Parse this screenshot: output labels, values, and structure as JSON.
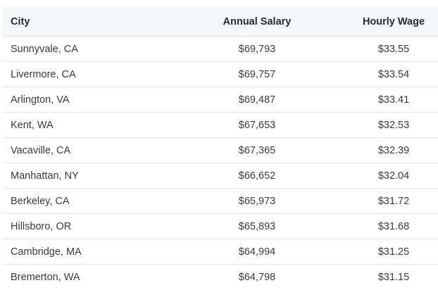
{
  "table": {
    "headers": {
      "city": "City",
      "annual_salary": "Annual Salary",
      "hourly_wage": "Hourly Wage"
    },
    "rows": [
      {
        "city": "Sunnyvale, CA",
        "annual_salary": "$69,793",
        "hourly_wage": "$33.55"
      },
      {
        "city": "Livermore, CA",
        "annual_salary": "$69,757",
        "hourly_wage": "$33.54"
      },
      {
        "city": "Arlington, VA",
        "annual_salary": "$69,487",
        "hourly_wage": "$33.41"
      },
      {
        "city": "Kent, WA",
        "annual_salary": "$67,653",
        "hourly_wage": "$32.53"
      },
      {
        "city": "Vacaville, CA",
        "annual_salary": "$67,365",
        "hourly_wage": "$32.39"
      },
      {
        "city": "Manhattan, NY",
        "annual_salary": "$66,652",
        "hourly_wage": "$32.04"
      },
      {
        "city": "Berkeley, CA",
        "annual_salary": "$65,973",
        "hourly_wage": "$31.72"
      },
      {
        "city": "Hillsboro, OR",
        "annual_salary": "$65,893",
        "hourly_wage": "$31.68"
      },
      {
        "city": "Cambridge, MA",
        "annual_salary": "$64,994",
        "hourly_wage": "$31.25"
      },
      {
        "city": "Bremerton, WA",
        "annual_salary": "$64,798",
        "hourly_wage": "$31.15"
      }
    ]
  },
  "colors": {
    "header_bg": "#f5f6f7",
    "border": "#e6e6e6",
    "text": "#333333"
  }
}
